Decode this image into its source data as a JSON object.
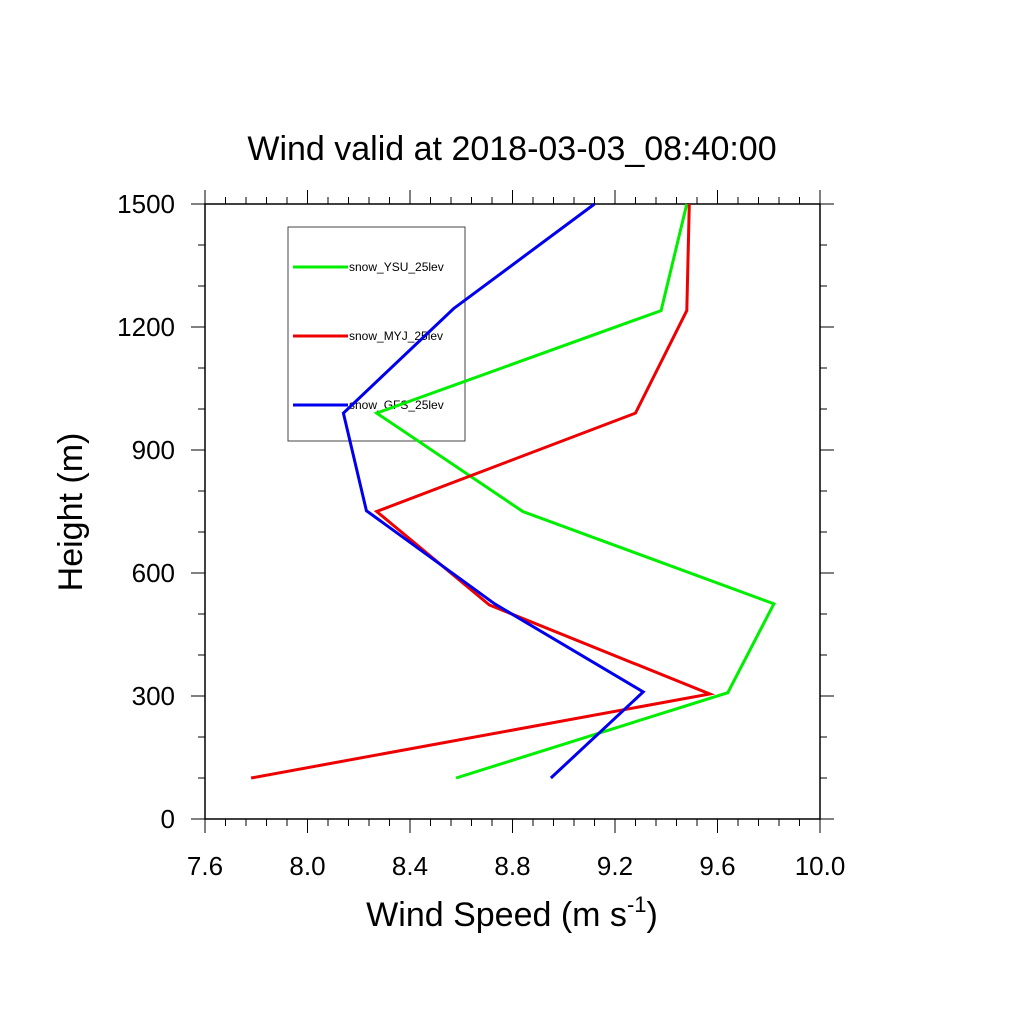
{
  "chart_data": {
    "type": "line",
    "title": "Wind valid at 2018-03-03_08:40:00",
    "xlabel": "Wind Speed (m s",
    "xlabel_sup": "-1",
    "xlabel_tail": ")",
    "ylabel": "Height (m)",
    "xlim": [
      7.6,
      10.0
    ],
    "ylim": [
      0,
      1500
    ],
    "xticks": [
      "7.6",
      "8.0",
      "8.4",
      "8.8",
      "9.2",
      "9.6",
      "10.0"
    ],
    "yticks": [
      "0",
      "300",
      "600",
      "900",
      "1200",
      "1500"
    ],
    "grid": false,
    "legend_position": "top-left",
    "series": [
      {
        "name": "snow_YSU_25lev",
        "color": "#00ee00",
        "x": [
          8.58,
          9.64,
          9.82,
          8.84,
          8.27,
          9.38,
          9.48
        ],
        "y": [
          100,
          308,
          525,
          750,
          990,
          1240,
          1500
        ]
      },
      {
        "name": "snow_MYJ_25lev",
        "color": "#ee0000",
        "x": [
          7.78,
          9.57,
          8.71,
          8.27,
          9.28,
          9.48,
          9.49
        ],
        "y": [
          100,
          305,
          522,
          750,
          990,
          1240,
          1500
        ]
      },
      {
        "name": "snow_GFS_25lev",
        "color": "#0000ee",
        "x": [
          8.95,
          9.31,
          8.73,
          8.23,
          8.14,
          8.57,
          9.12
        ],
        "y": [
          100,
          310,
          525,
          752,
          990,
          1245,
          1500
        ]
      }
    ]
  }
}
